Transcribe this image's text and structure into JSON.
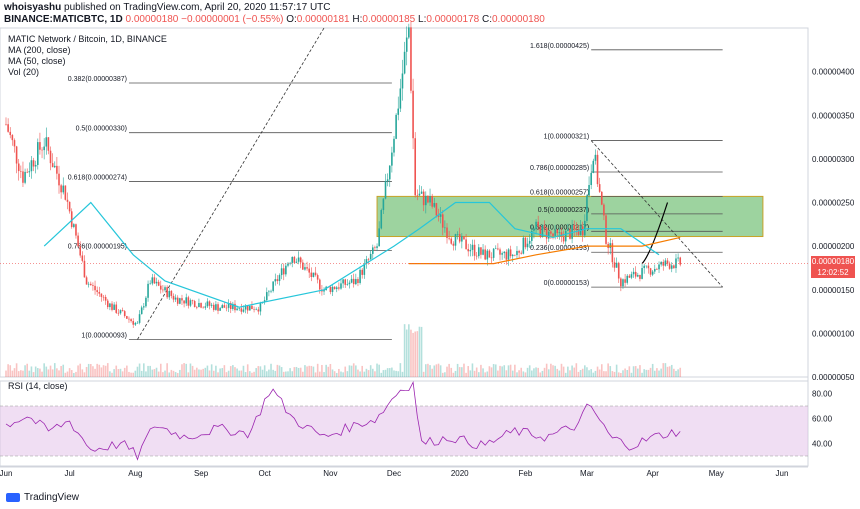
{
  "header": {
    "author": "whoisyashu",
    "published": "published on TradingView.com, April 20, 2020 11:57:17 UTC",
    "symbol": "BINANCE:MATICBTC, 1D",
    "last": "0.00000180",
    "change": "−0.00000001 (−0.55%)",
    "o_label": "O:",
    "o": "0.00000181",
    "h_label": "H:",
    "h": "0.00000185",
    "l_label": "L:",
    "l": "0.00000178",
    "c_label": "C:",
    "c": "0.00000180"
  },
  "legend": {
    "title": "MATIC Network / Bitcoin, 1D, BINANCE",
    "ma200": "MA (200, close)",
    "ma50": "MA (50, close)",
    "vol": "Vol (20)",
    "rsi": "RSI (14, close)"
  },
  "price_tag": "0.00000180",
  "time_tag": "12:02:52",
  "footer": {
    "brand": "TradingView"
  },
  "colors": {
    "up": "#26a69a",
    "down": "#ef5350",
    "ma50": "#26c6da",
    "ma200": "#f57c00",
    "rsi": "#9c27b0",
    "rsi_band": "#e1bee7",
    "zone": "#4caf50",
    "zone_border": "#c9a227"
  },
  "chart_data": {
    "type": "candlestick",
    "price_axis": {
      "min": 5e-07,
      "max": 4.5e-06,
      "ticks": [
        "0.00000400",
        "0.00000350",
        "0.00000300",
        "0.00000250",
        "0.00000200",
        "0.00000150",
        "0.00000100",
        "0.00000050"
      ],
      "tick_values": [
        4e-06,
        3.5e-06,
        3e-06,
        2.5e-06,
        2e-06,
        1.5e-06,
        1e-06,
        5e-07
      ]
    },
    "time_axis": {
      "labels": [
        "Jun",
        "Jul",
        "Aug",
        "Sep",
        "Oct",
        "Nov",
        "Dec",
        "2020",
        "Feb",
        "Mar",
        "Apr",
        "May",
        "Jun"
      ],
      "label_days": [
        0,
        30,
        61,
        92,
        122,
        153,
        183,
        214,
        245,
        274,
        305,
        335,
        366
      ]
    },
    "price_keypoints": [
      [
        0,
        3.4e-06
      ],
      [
        8,
        2.8e-06
      ],
      [
        18,
        3.2e-06
      ],
      [
        28,
        2.6e-06
      ],
      [
        38,
        1.6e-06
      ],
      [
        50,
        1.3e-06
      ],
      [
        62,
        1.1e-06
      ],
      [
        68,
        1.6e-06
      ],
      [
        80,
        1.4e-06
      ],
      [
        100,
        1.3e-06
      ],
      [
        120,
        1.3e-06
      ],
      [
        135,
        1.9e-06
      ],
      [
        150,
        1.5e-06
      ],
      [
        165,
        1.6e-06
      ],
      [
        175,
        2e-06
      ],
      [
        183,
        3.3e-06
      ],
      [
        190,
        4.5e-06
      ],
      [
        193,
        2.6e-06
      ],
      [
        200,
        2.5e-06
      ],
      [
        210,
        2.1e-06
      ],
      [
        225,
        1.9e-06
      ],
      [
        240,
        1.9e-06
      ],
      [
        250,
        2.2e-06
      ],
      [
        260,
        2.1e-06
      ],
      [
        272,
        2.2e-06
      ],
      [
        277,
        3.1e-06
      ],
      [
        283,
        2.1e-06
      ],
      [
        290,
        1.6e-06
      ],
      [
        300,
        1.7e-06
      ],
      [
        312,
        1.8e-06
      ],
      [
        318,
        1.8e-06
      ]
    ],
    "ma50_keypoints": [
      [
        18,
        2e-06
      ],
      [
        40,
        2.5e-06
      ],
      [
        60,
        1.9e-06
      ],
      [
        75,
        1.6e-06
      ],
      [
        110,
        1.3e-06
      ],
      [
        150,
        1.5e-06
      ],
      [
        183,
        2e-06
      ],
      [
        195,
        2.2e-06
      ],
      [
        212,
        2.5e-06
      ],
      [
        228,
        2.5e-06
      ],
      [
        240,
        2.2e-06
      ],
      [
        258,
        2.1e-06
      ],
      [
        274,
        2.2e-06
      ],
      [
        290,
        2.2e-06
      ],
      [
        308,
        1.9e-06
      ]
    ],
    "ma200_keypoints": [
      [
        190,
        1.8e-06
      ],
      [
        210,
        1.8e-06
      ],
      [
        230,
        1.8e-06
      ],
      [
        250,
        1.9e-06
      ],
      [
        274,
        2e-06
      ],
      [
        300,
        2e-06
      ],
      [
        318,
        2.1e-06
      ]
    ],
    "rsi_axis": {
      "ticks": [
        "80.00",
        "60.00",
        "40.00"
      ],
      "tick_values": [
        80,
        60,
        40
      ],
      "band": [
        30,
        70
      ],
      "min": 22,
      "max": 90
    },
    "rsi_keypoints": [
      [
        0,
        55
      ],
      [
        10,
        62
      ],
      [
        20,
        50
      ],
      [
        30,
        58
      ],
      [
        40,
        35
      ],
      [
        55,
        40
      ],
      [
        62,
        30
      ],
      [
        70,
        55
      ],
      [
        85,
        45
      ],
      [
        100,
        52
      ],
      [
        115,
        48
      ],
      [
        125,
        85
      ],
      [
        135,
        60
      ],
      [
        150,
        45
      ],
      [
        165,
        55
      ],
      [
        175,
        60
      ],
      [
        185,
        82
      ],
      [
        192,
        88
      ],
      [
        196,
        40
      ],
      [
        210,
        45
      ],
      [
        225,
        38
      ],
      [
        240,
        50
      ],
      [
        255,
        45
      ],
      [
        270,
        55
      ],
      [
        275,
        72
      ],
      [
        285,
        45
      ],
      [
        295,
        38
      ],
      [
        305,
        45
      ],
      [
        312,
        48
      ],
      [
        318,
        50
      ]
    ],
    "fib_left": [
      {
        "label": "1(0.00000093)",
        "value": 9.3e-07
      },
      {
        "label": "0.786(0.00000195)",
        "value": 1.95e-06
      },
      {
        "label": "0.618(0.00000274)",
        "value": 2.74e-06
      },
      {
        "label": "0.5(0.00000330)",
        "value": 3.3e-06
      },
      {
        "label": "0.382(0.00000387)",
        "value": 3.87e-06
      }
    ],
    "fib_right": [
      {
        "label": "1.618(0.00000425)",
        "value": 4.25e-06
      },
      {
        "label": "1(0.00000321)",
        "value": 3.21e-06
      },
      {
        "label": "0.786(0.00000285)",
        "value": 2.85e-06
      },
      {
        "label": "0.618(0.00000257)",
        "value": 2.57e-06
      },
      {
        "label": "0.5(0.00000237)",
        "value": 2.37e-06
      },
      {
        "label": "0.382(0.00000217)",
        "value": 2.17e-06
      },
      {
        "label": "0.236(0.00000193)",
        "value": 1.93e-06
      },
      {
        "label": "0(0.00000153)",
        "value": 1.53e-06
      }
    ],
    "zone": {
      "day_start": 175,
      "day_end": 357,
      "top": 2.57e-06,
      "bottom": 2.11e-06
    },
    "current_price": 1.8e-06
  }
}
